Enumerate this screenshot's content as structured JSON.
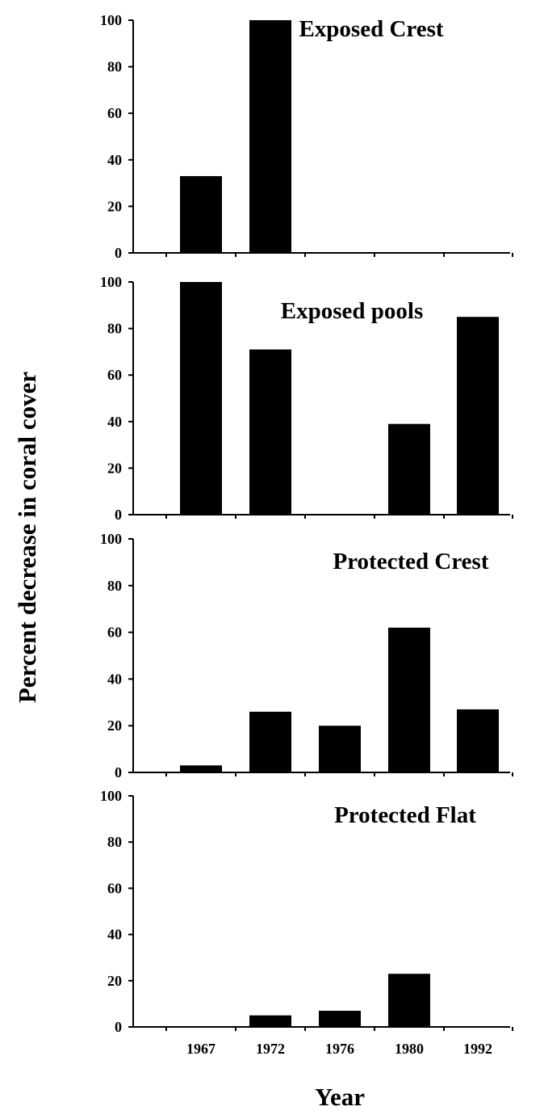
{
  "chart_data": {
    "type": "bar",
    "ylabel": "Percent decrease in coral cover",
    "xlabel": "Year",
    "categories": [
      "1967",
      "1972",
      "1976",
      "1980",
      "1992"
    ],
    "yticks": [
      "0",
      "20",
      "40",
      "60",
      "80",
      "100"
    ],
    "ylim": [
      0,
      100
    ],
    "grid": false,
    "panels": [
      {
        "title": "Exposed Crest",
        "values": [
          33,
          100,
          0,
          0,
          0
        ]
      },
      {
        "title": "Exposed pools",
        "values": [
          100,
          71,
          0,
          39,
          85
        ]
      },
      {
        "title": "Protected Crest",
        "values": [
          3,
          26,
          20,
          62,
          27
        ]
      },
      {
        "title": "Protected Flat",
        "values": [
          0,
          5,
          7,
          23,
          0
        ]
      }
    ]
  }
}
